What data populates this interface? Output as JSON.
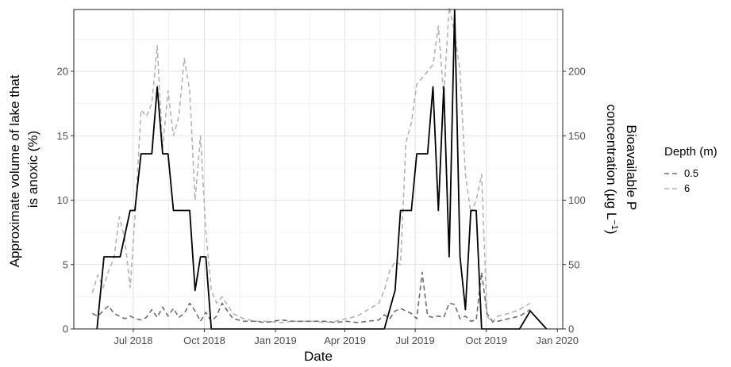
{
  "chart_data": {
    "type": "line",
    "xlabel": "Date",
    "ylabel_left": [
      "Approximate volume of lake that",
      "is anoxic (%)"
    ],
    "ylabel_right": {
      "line1": "Bioavailable P",
      "line2_prefix": "concentration (µg L",
      "line2_sup": "−1",
      "line2_suffix": ")"
    },
    "xlim": [
      "2018-04-15",
      "2020-01-08"
    ],
    "ylim_left": [
      0,
      24.8
    ],
    "ylim_right": [
      0,
      248
    ],
    "x_ticks": [
      {
        "date": "2018-07-01",
        "label": "Jul 2018"
      },
      {
        "date": "2018-10-01",
        "label": "Oct 2018"
      },
      {
        "date": "2019-01-01",
        "label": "Jan 2019"
      },
      {
        "date": "2019-04-01",
        "label": "Apr 2019"
      },
      {
        "date": "2019-07-01",
        "label": "Jul 2019"
      },
      {
        "date": "2019-10-01",
        "label": "Oct 2019"
      },
      {
        "date": "2020-01-01",
        "label": "Jan 2020"
      }
    ],
    "y_ticks_left": [
      0,
      5,
      10,
      15,
      20
    ],
    "y_ticks_right": [
      0,
      50,
      100,
      150,
      200
    ],
    "grid": true,
    "legend": {
      "title": "Depth (m)",
      "placement": "right",
      "entries": [
        "0.5",
        "6"
      ]
    },
    "series": [
      {
        "role": "anoxic_volume",
        "axis": "left",
        "style": "solid",
        "color": "#000000",
        "x": [
          "2018-05-15",
          "2018-05-24",
          "2018-06-14",
          "2018-06-27",
          "2018-07-03",
          "2018-07-11",
          "2018-07-25",
          "2018-08-01",
          "2018-08-08",
          "2018-08-15",
          "2018-08-22",
          "2018-09-05",
          "2018-09-12",
          "2018-09-19",
          "2018-09-26",
          "2018-10-03",
          "2018-10-10",
          "2018-10-17",
          "2019-05-22",
          "2019-06-05",
          "2019-06-12",
          "2019-06-26",
          "2019-07-03",
          "2019-07-17",
          "2019-07-24",
          "2019-07-31",
          "2019-08-07",
          "2019-08-14",
          "2019-08-21",
          "2019-08-28",
          "2019-09-04",
          "2019-09-11",
          "2019-09-18",
          "2019-09-25",
          "2019-10-02",
          "2019-10-09",
          "2019-11-13",
          "2019-11-27",
          "2019-12-18"
        ],
        "y": [
          0,
          5.6,
          5.6,
          9.2,
          9.2,
          13.6,
          13.6,
          18.8,
          13.6,
          13.6,
          9.2,
          9.2,
          9.2,
          3.0,
          5.6,
          5.6,
          0,
          0,
          0,
          3.0,
          9.2,
          9.2,
          13.6,
          13.6,
          18.8,
          9.2,
          18.8,
          5.6,
          24.8,
          5.6,
          1.5,
          9.2,
          9.2,
          0,
          0,
          0,
          0,
          1.4,
          0
        ]
      },
      {
        "name": "0.5",
        "axis": "right",
        "style": "dashed",
        "color": "#6e6e6e",
        "x": [
          "2018-05-09",
          "2018-05-16",
          "2018-05-23",
          "2018-05-30",
          "2018-06-06",
          "2018-06-13",
          "2018-06-20",
          "2018-06-27",
          "2018-07-04",
          "2018-07-11",
          "2018-07-18",
          "2018-07-25",
          "2018-08-01",
          "2018-08-08",
          "2018-08-15",
          "2018-08-22",
          "2018-08-29",
          "2018-09-05",
          "2018-09-12",
          "2018-09-19",
          "2018-09-26",
          "2018-10-03",
          "2018-10-10",
          "2018-10-17",
          "2018-10-24",
          "2018-11-07",
          "2018-11-21",
          "2018-12-05",
          "2018-12-19",
          "2019-01-09",
          "2019-01-23",
          "2019-02-06",
          "2019-02-20",
          "2019-03-06",
          "2019-03-20",
          "2019-04-03",
          "2019-04-17",
          "2019-05-01",
          "2019-05-15",
          "2019-05-22",
          "2019-05-29",
          "2019-06-05",
          "2019-06-12",
          "2019-06-19",
          "2019-06-26",
          "2019-07-03",
          "2019-07-10",
          "2019-07-17",
          "2019-07-24",
          "2019-07-31",
          "2019-08-07",
          "2019-08-14",
          "2019-08-21",
          "2019-08-28",
          "2019-09-04",
          "2019-09-11",
          "2019-09-18",
          "2019-09-25",
          "2019-10-02",
          "2019-10-09",
          "2019-10-16",
          "2019-10-30",
          "2019-11-13",
          "2019-11-27"
        ],
        "y": [
          12,
          10,
          14,
          18,
          12,
          10,
          8,
          10,
          8,
          7,
          9,
          15,
          9,
          17,
          10,
          16,
          9,
          12,
          20,
          14,
          6,
          13,
          6,
          10,
          20,
          8,
          6,
          6,
          5,
          7,
          6,
          6,
          6,
          6,
          5,
          6,
          5,
          6,
          7,
          11,
          8,
          14,
          16,
          14,
          12,
          8,
          44,
          10,
          9,
          10,
          9,
          20,
          19,
          8,
          10,
          6,
          7,
          44,
          12,
          6,
          6,
          8,
          10,
          15
        ]
      },
      {
        "name": "6",
        "axis": "right",
        "style": "dashed",
        "color": "#b4b4b4",
        "x": [
          "2018-05-09",
          "2018-05-16",
          "2018-05-23",
          "2018-05-30",
          "2018-06-06",
          "2018-06-13",
          "2018-06-20",
          "2018-06-27",
          "2018-07-04",
          "2018-07-11",
          "2018-07-18",
          "2018-07-25",
          "2018-08-01",
          "2018-08-08",
          "2018-08-15",
          "2018-08-22",
          "2018-08-29",
          "2018-09-05",
          "2018-09-12",
          "2018-09-19",
          "2018-09-26",
          "2018-10-03",
          "2018-10-10",
          "2018-10-17",
          "2018-10-24",
          "2018-11-07",
          "2018-11-21",
          "2018-12-05",
          "2018-12-19",
          "2019-01-09",
          "2019-01-23",
          "2019-02-06",
          "2019-02-20",
          "2019-03-06",
          "2019-03-20",
          "2019-04-03",
          "2019-04-17",
          "2019-05-01",
          "2019-05-15",
          "2019-05-22",
          "2019-05-29",
          "2019-06-05",
          "2019-06-12",
          "2019-06-19",
          "2019-06-26",
          "2019-07-03",
          "2019-07-10",
          "2019-07-17",
          "2019-07-24",
          "2019-07-31",
          "2019-08-07",
          "2019-08-14",
          "2019-08-21",
          "2019-08-28",
          "2019-09-04",
          "2019-09-11",
          "2019-09-18",
          "2019-09-25",
          "2019-10-02",
          "2019-10-09",
          "2019-10-16",
          "2019-10-30",
          "2019-11-13",
          "2019-11-27"
        ],
        "y": [
          28,
          42,
          32,
          45,
          55,
          87,
          70,
          32,
          95,
          170,
          165,
          175,
          220,
          140,
          185,
          150,
          165,
          210,
          185,
          100,
          150,
          75,
          30,
          20,
          25,
          12,
          8,
          6,
          6,
          5,
          6,
          6,
          6,
          5,
          6,
          8,
          10,
          15,
          20,
          30,
          45,
          52,
          50,
          145,
          160,
          190,
          195,
          200,
          205,
          235,
          180,
          250,
          230,
          200,
          120,
          90,
          100,
          120,
          10,
          5,
          10,
          12,
          15,
          20
        ]
      }
    ]
  }
}
